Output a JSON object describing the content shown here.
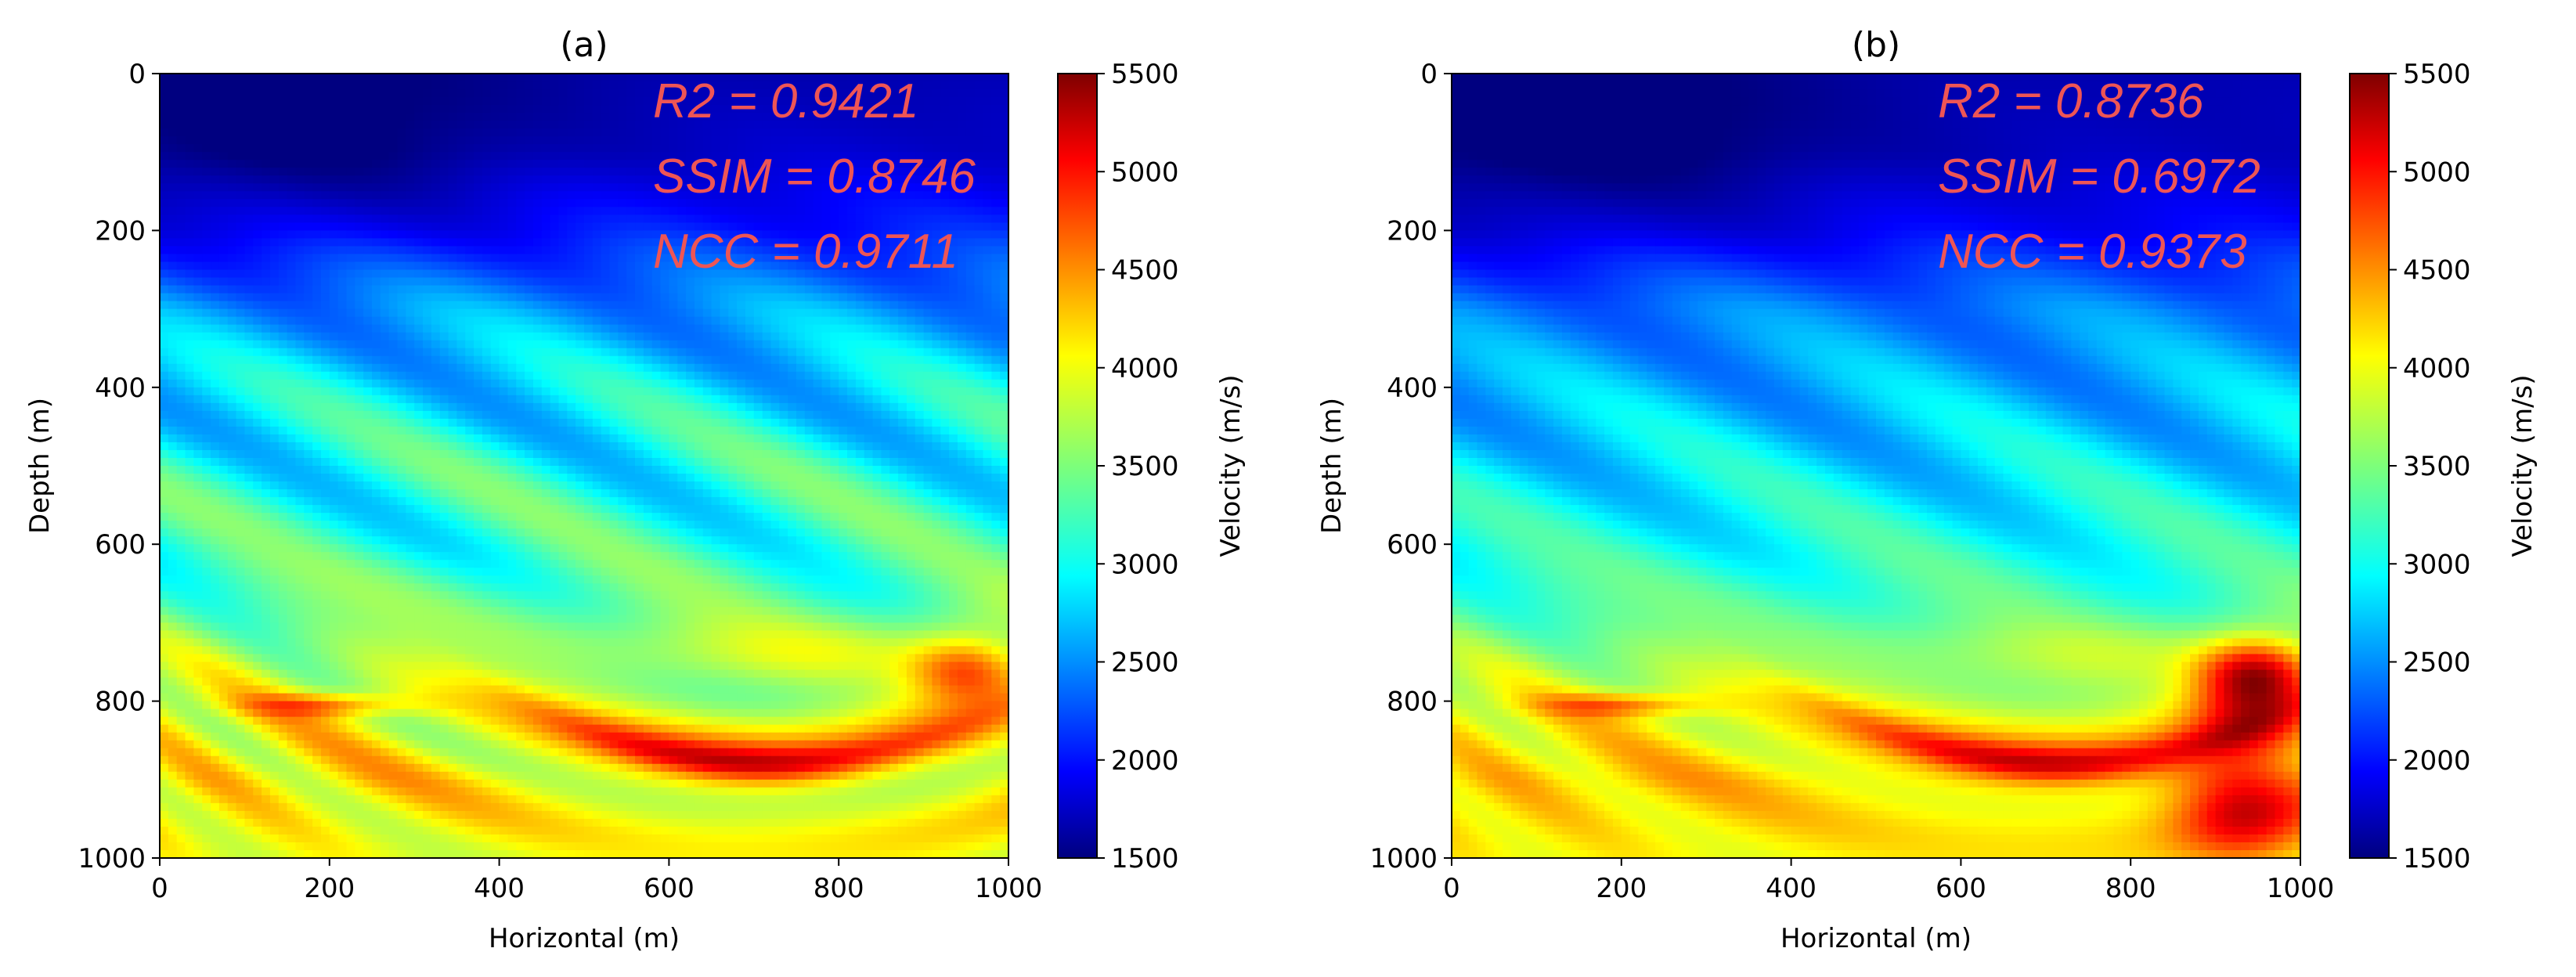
{
  "chart_data": [
    {
      "type": "heatmap",
      "title": "(a)",
      "xlabel": "Horizontal (m)",
      "ylabel": "Depth (m)",
      "xlim": [
        0,
        1000
      ],
      "ylim": [
        1000,
        0
      ],
      "x_ticks": [
        "0",
        "200",
        "400",
        "600",
        "800",
        "1000"
      ],
      "y_ticks": [
        "0",
        "200",
        "400",
        "600",
        "800",
        "1000"
      ],
      "colorbar": {
        "label": "Velocity (m/s)",
        "range": [
          1500,
          5500
        ],
        "ticks": [
          "1500",
          "2000",
          "2500",
          "3000",
          "3500",
          "4000",
          "4500",
          "5000",
          "5500"
        ],
        "colormap": "jet"
      },
      "annotations": [
        "R2 = 0.9421",
        "SSIM = 0.8746",
        "NCC = 0.9711"
      ],
      "metrics": {
        "R2": 0.9421,
        "SSIM": 0.8746,
        "NCC": 0.9711
      },
      "velocity_profile_by_depth": {
        "depth": [
          0,
          100,
          200,
          300,
          400,
          500,
          600,
          700,
          800,
          900,
          1000
        ],
        "velocity": [
          1700,
          1800,
          2100,
          2600,
          2900,
          3100,
          3200,
          3500,
          3900,
          4100,
          3900
        ]
      }
    },
    {
      "type": "heatmap",
      "title": "(b)",
      "xlabel": "Horizontal (m)",
      "ylabel": "Depth (m)",
      "xlim": [
        0,
        1000
      ],
      "ylim": [
        1000,
        0
      ],
      "x_ticks": [
        "0",
        "200",
        "400",
        "600",
        "800",
        "1000"
      ],
      "y_ticks": [
        "0",
        "200",
        "400",
        "600",
        "800",
        "1000"
      ],
      "colorbar": {
        "label": "Velocity (m/s)",
        "range": [
          1500,
          5500
        ],
        "ticks": [
          "1500",
          "2000",
          "2500",
          "3000",
          "3500",
          "4000",
          "4500",
          "5000",
          "5500"
        ],
        "colormap": "jet"
      },
      "annotations": [
        "R2 = 0.8736",
        "SSIM = 0.6972",
        "NCC = 0.9373"
      ],
      "metrics": {
        "R2": 0.8736,
        "SSIM": 0.6972,
        "NCC": 0.9373
      },
      "velocity_profile_by_depth": {
        "depth": [
          0,
          100,
          200,
          300,
          400,
          500,
          600,
          700,
          800,
          900,
          1000
        ],
        "velocity": [
          1700,
          1750,
          2000,
          2500,
          2700,
          2900,
          3100,
          3400,
          3900,
          4200,
          4000
        ]
      }
    }
  ]
}
